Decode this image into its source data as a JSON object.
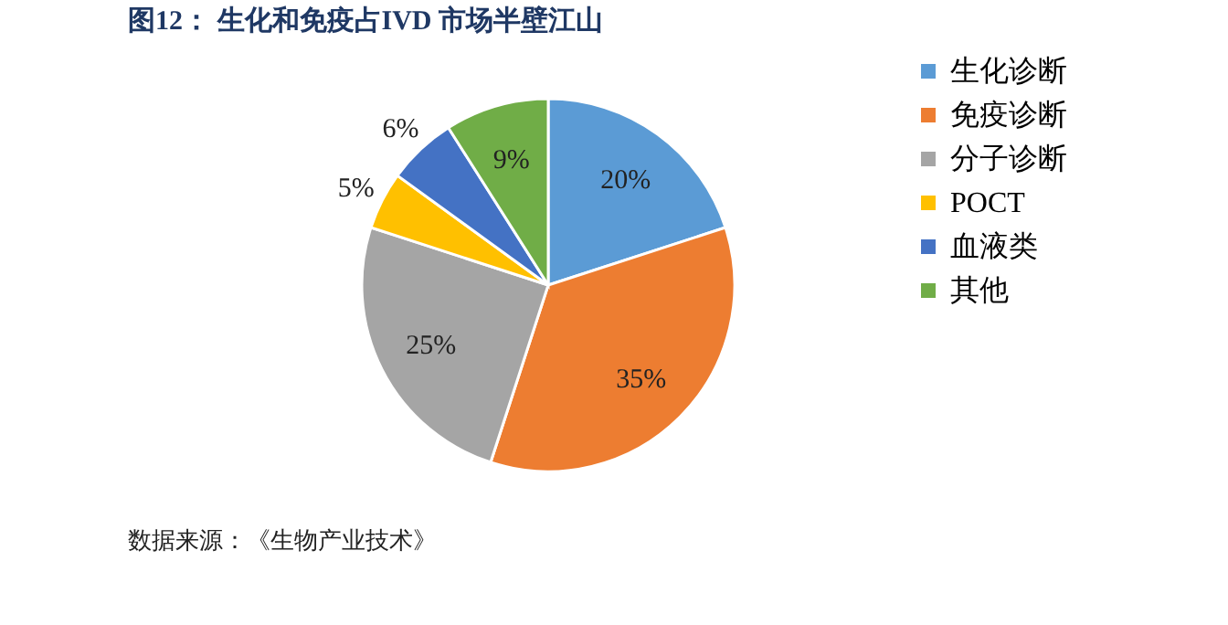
{
  "chart_data": {
    "type": "pie",
    "title": "图12：  生化和免疫占IVD 市场半壁江山",
    "categories": [
      "生化诊断",
      "免疫诊断",
      "分子诊断",
      "POCT",
      "血液类",
      "其他"
    ],
    "values": [
      20,
      35,
      25,
      5,
      6,
      9
    ],
    "colors": [
      "#5b9bd5",
      "#ed7d31",
      "#a5a5a5",
      "#ffc000",
      "#4472c4",
      "#70ad47"
    ],
    "value_labels": [
      "20%",
      "35%",
      "25%",
      "5%",
      "6%",
      "9%"
    ],
    "legend": "right",
    "annotations": [
      "数据来源：《生物产业技术》"
    ]
  }
}
